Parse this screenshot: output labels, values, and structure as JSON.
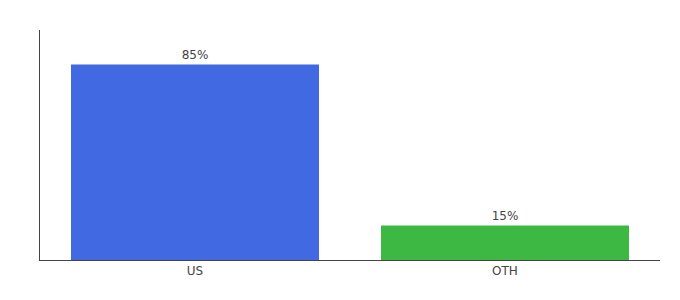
{
  "chart_data": {
    "type": "bar",
    "categories": [
      "US",
      "OTH"
    ],
    "values": [
      85,
      15
    ],
    "value_labels": [
      "85%",
      "15%"
    ],
    "colors": [
      "#4169e1",
      "#3cb843"
    ],
    "data_labels": true,
    "ylim": [
      0,
      100
    ],
    "yticks": [],
    "grid": false,
    "tick_labels": "x"
  }
}
